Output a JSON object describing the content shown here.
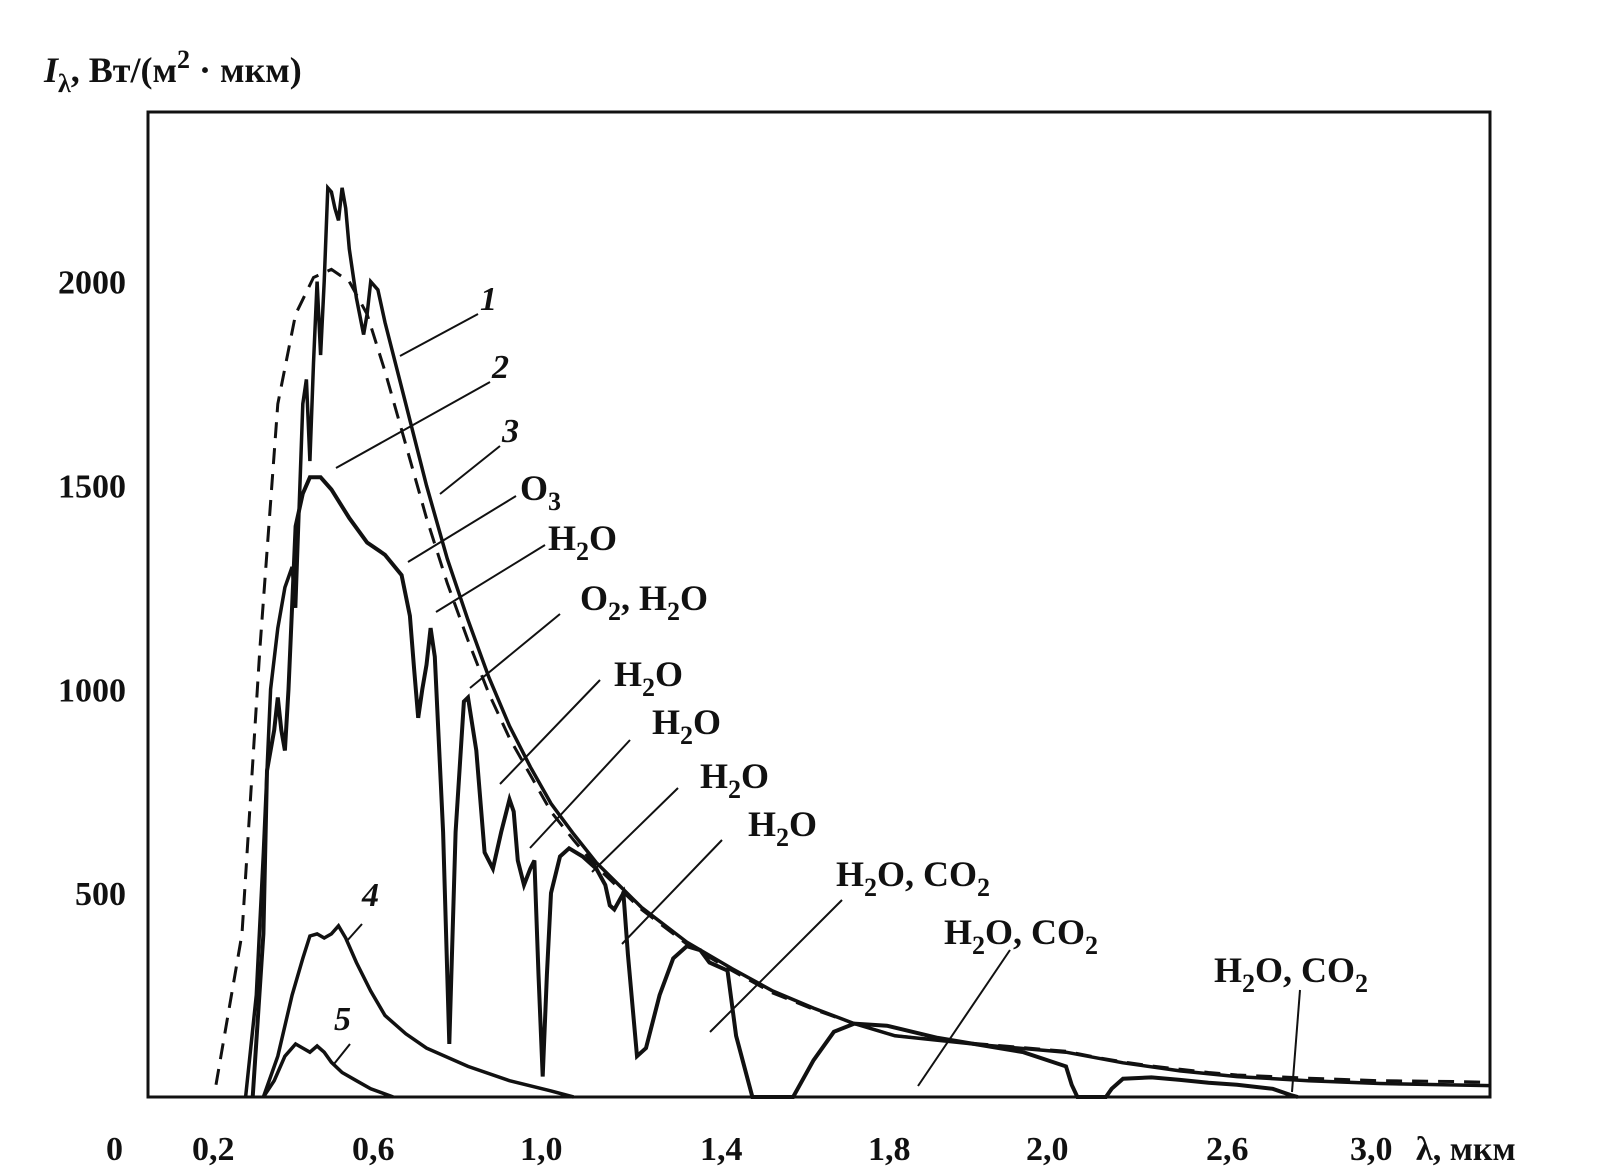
{
  "colors": {
    "ink": "#111111",
    "background": "#ffffff"
  },
  "chart_data": {
    "type": "line",
    "ylabel_main": "I",
    "ylabel_sub": "λ",
    "ylabel_unit_pre": ", Вт/(м",
    "ylabel_unit_sup": "2",
    "ylabel_unit_post": " · мкм)",
    "xlabel": "λ, мкм",
    "ylim": [
      0,
      2400
    ],
    "y_ticks": [
      500,
      1000,
      1500,
      2000
    ],
    "y_tick_labels": [
      "500",
      "1000",
      "1500",
      "2000"
    ],
    "x_origin_label": "0",
    "x_tick_labels": [
      "0,2",
      "0,6",
      "1,0",
      "1,4",
      "1,8",
      "2,0",
      "2,6",
      "3,0"
    ],
    "grid": false,
    "legend": "none",
    "series": [
      {
        "key": "1",
        "style": "dashed",
        "points": [
          [
            0.16,
            30
          ],
          [
            0.2,
            400
          ],
          [
            0.25,
            1100
          ],
          [
            0.3,
            1700
          ],
          [
            0.35,
            1920
          ],
          [
            0.4,
            2010
          ],
          [
            0.45,
            2030
          ],
          [
            0.5,
            2000
          ],
          [
            0.55,
            1920
          ],
          [
            0.6,
            1780
          ],
          [
            0.65,
            1600
          ],
          [
            0.7,
            1420
          ],
          [
            0.75,
            1260
          ],
          [
            0.8,
            1120
          ],
          [
            0.85,
            990
          ],
          [
            0.9,
            880
          ],
          [
            0.95,
            790
          ],
          [
            1.0,
            700
          ],
          [
            1.05,
            630
          ],
          [
            1.1,
            565
          ],
          [
            1.2,
            460
          ],
          [
            1.3,
            375
          ],
          [
            1.4,
            310
          ],
          [
            1.5,
            255
          ],
          [
            1.6,
            215
          ],
          [
            1.7,
            180
          ],
          [
            1.8,
            150
          ],
          [
            1.9,
            130
          ],
          [
            2.0,
            112
          ],
          [
            2.1,
            98
          ],
          [
            2.2,
            86
          ],
          [
            2.3,
            76
          ],
          [
            2.4,
            68
          ],
          [
            2.5,
            60
          ],
          [
            2.6,
            54
          ],
          [
            2.7,
            50
          ],
          [
            2.8,
            46
          ],
          [
            2.9,
            43
          ],
          [
            3.0,
            40
          ],
          [
            3.1,
            38
          ],
          [
            3.15,
            36
          ]
        ]
      },
      {
        "key": "2",
        "style": "solid",
        "points": [
          [
            0.21,
            0
          ],
          [
            0.24,
            250
          ],
          [
            0.26,
            600
          ],
          [
            0.28,
            1000
          ],
          [
            0.3,
            1150
          ],
          [
            0.32,
            1250
          ],
          [
            0.34,
            1300
          ],
          [
            0.35,
            1200
          ],
          [
            0.36,
            1450
          ],
          [
            0.37,
            1700
          ],
          [
            0.38,
            1760
          ],
          [
            0.39,
            1560
          ],
          [
            0.4,
            1800
          ],
          [
            0.41,
            2000
          ],
          [
            0.42,
            1820
          ],
          [
            0.43,
            2000
          ],
          [
            0.44,
            2230
          ],
          [
            0.45,
            2220
          ],
          [
            0.46,
            2180
          ],
          [
            0.47,
            2150
          ],
          [
            0.48,
            2230
          ],
          [
            0.49,
            2180
          ],
          [
            0.5,
            2080
          ],
          [
            0.52,
            1960
          ],
          [
            0.54,
            1870
          ],
          [
            0.55,
            1920
          ],
          [
            0.56,
            2000
          ],
          [
            0.58,
            1980
          ],
          [
            0.6,
            1900
          ],
          [
            0.65,
            1700
          ],
          [
            0.7,
            1500
          ],
          [
            0.75,
            1320
          ],
          [
            0.8,
            1170
          ],
          [
            0.85,
            1030
          ],
          [
            0.9,
            910
          ],
          [
            0.95,
            810
          ],
          [
            1.0,
            720
          ],
          [
            1.05,
            645
          ],
          [
            1.1,
            575
          ],
          [
            1.2,
            465
          ],
          [
            1.3,
            380
          ],
          [
            1.4,
            315
          ],
          [
            1.5,
            260
          ],
          [
            1.6,
            218
          ],
          [
            1.7,
            180
          ],
          [
            1.8,
            150
          ],
          [
            1.9,
            128
          ],
          [
            2.0,
            110
          ],
          [
            2.2,
            84
          ],
          [
            2.4,
            64
          ],
          [
            2.6,
            50
          ],
          [
            2.8,
            40
          ],
          [
            3.0,
            33
          ],
          [
            3.15,
            28
          ]
        ]
      },
      {
        "key": "3",
        "style": "solid",
        "points": [
          [
            0.23,
            0
          ],
          [
            0.26,
            400
          ],
          [
            0.27,
            800
          ],
          [
            0.29,
            900
          ],
          [
            0.3,
            980
          ],
          [
            0.31,
            900
          ],
          [
            0.32,
            850
          ],
          [
            0.33,
            1000
          ],
          [
            0.35,
            1400
          ],
          [
            0.37,
            1480
          ],
          [
            0.39,
            1520
          ],
          [
            0.42,
            1520
          ],
          [
            0.45,
            1490
          ],
          [
            0.5,
            1420
          ],
          [
            0.55,
            1360
          ],
          [
            0.6,
            1330
          ],
          [
            0.64,
            1280
          ],
          [
            0.66,
            1180
          ],
          [
            0.67,
            1050
          ],
          [
            0.68,
            930
          ],
          [
            0.69,
            1000
          ],
          [
            0.7,
            1060
          ],
          [
            0.71,
            1150
          ],
          [
            0.72,
            1080
          ],
          [
            0.74,
            650
          ],
          [
            0.755,
            130
          ],
          [
            0.77,
            650
          ],
          [
            0.79,
            970
          ],
          [
            0.8,
            980
          ],
          [
            0.82,
            850
          ],
          [
            0.84,
            600
          ],
          [
            0.86,
            560
          ],
          [
            0.88,
            650
          ],
          [
            0.9,
            730
          ],
          [
            0.91,
            700
          ],
          [
            0.92,
            580
          ],
          [
            0.935,
            520
          ],
          [
            0.95,
            560
          ],
          [
            0.96,
            580
          ],
          [
            0.97,
            300
          ],
          [
            0.98,
            50
          ],
          [
            0.99,
            300
          ],
          [
            1.0,
            500
          ],
          [
            1.02,
            590
          ],
          [
            1.04,
            610
          ],
          [
            1.07,
            590
          ],
          [
            1.1,
            560
          ],
          [
            1.12,
            520
          ],
          [
            1.13,
            470
          ],
          [
            1.14,
            460
          ],
          [
            1.16,
            500
          ],
          [
            1.17,
            350
          ],
          [
            1.19,
            100
          ],
          [
            1.21,
            120
          ],
          [
            1.24,
            250
          ],
          [
            1.27,
            340
          ],
          [
            1.3,
            370
          ],
          [
            1.33,
            360
          ],
          [
            1.35,
            330
          ],
          [
            1.37,
            320
          ],
          [
            1.39,
            310
          ],
          [
            1.41,
            150
          ],
          [
            1.45,
            0
          ],
          [
            1.55,
            0
          ],
          [
            1.6,
            90
          ],
          [
            1.65,
            160
          ],
          [
            1.7,
            180
          ],
          [
            1.78,
            175
          ],
          [
            1.85,
            145
          ],
          [
            1.95,
            110
          ],
          [
            2.0,
            75
          ],
          [
            2.02,
            30
          ],
          [
            2.04,
            0
          ],
          [
            2.14,
            0
          ],
          [
            2.16,
            20
          ],
          [
            2.2,
            45
          ],
          [
            2.3,
            48
          ],
          [
            2.4,
            42
          ],
          [
            2.5,
            35
          ],
          [
            2.6,
            30
          ],
          [
            2.7,
            20
          ],
          [
            2.75,
            5
          ],
          [
            2.77,
            0
          ]
        ]
      },
      {
        "key": "4",
        "style": "solid",
        "points": [
          [
            0.26,
            0
          ],
          [
            0.3,
            100
          ],
          [
            0.34,
            250
          ],
          [
            0.37,
            340
          ],
          [
            0.39,
            395
          ],
          [
            0.41,
            400
          ],
          [
            0.43,
            390
          ],
          [
            0.45,
            400
          ],
          [
            0.47,
            420
          ],
          [
            0.49,
            390
          ],
          [
            0.52,
            330
          ],
          [
            0.56,
            260
          ],
          [
            0.6,
            200
          ],
          [
            0.65,
            155
          ],
          [
            0.7,
            120
          ],
          [
            0.8,
            75
          ],
          [
            0.9,
            40
          ],
          [
            1.0,
            15
          ],
          [
            1.05,
            0
          ]
        ]
      },
      {
        "key": "5",
        "style": "solid",
        "points": [
          [
            0.26,
            0
          ],
          [
            0.29,
            40
          ],
          [
            0.32,
            100
          ],
          [
            0.35,
            130
          ],
          [
            0.37,
            120
          ],
          [
            0.39,
            110
          ],
          [
            0.41,
            125
          ],
          [
            0.43,
            110
          ],
          [
            0.45,
            85
          ],
          [
            0.48,
            60
          ],
          [
            0.52,
            40
          ],
          [
            0.56,
            20
          ],
          [
            0.62,
            0
          ]
        ]
      }
    ],
    "curve_labels": [
      "1",
      "2",
      "3",
      "4",
      "5"
    ],
    "absorption_labels": [
      {
        "gas": [
          "O",
          "3"
        ]
      },
      {
        "gas": [
          "H",
          "2",
          "O"
        ]
      },
      {
        "gas": [
          "O",
          "2",
          ", H",
          "2",
          "O"
        ]
      },
      {
        "gas": [
          "H",
          "2",
          "O"
        ]
      },
      {
        "gas": [
          "H",
          "2",
          "O"
        ]
      },
      {
        "gas": [
          "H",
          "2",
          "O"
        ]
      },
      {
        "gas": [
          "H",
          "2",
          "O"
        ]
      },
      {
        "gas": [
          "H",
          "2",
          "O, CO",
          "2"
        ]
      },
      {
        "gas": [
          "H",
          "2",
          "O, CO",
          "2"
        ]
      },
      {
        "gas": [
          "H",
          "2",
          "O, CO",
          "2"
        ]
      }
    ]
  }
}
